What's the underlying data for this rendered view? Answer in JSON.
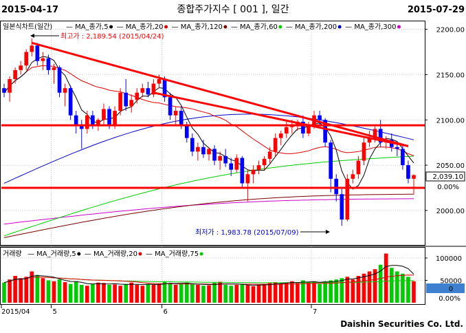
{
  "header": {
    "start_date": "2015-04-17",
    "title": "종합주가지수 [ 001 ], 일간",
    "end_date": "2015-07-29"
  },
  "footer": {
    "brand": "Daishin Securities Co. Ltd."
  },
  "colors": {
    "up": "#ff0000",
    "down": "#0000ff",
    "ma5": "#000000",
    "ma20": "#e00000",
    "ma120": "#7a0000",
    "ma60": "#00cc00",
    "ma200": "#0000cc",
    "ma300": "#cc00cc",
    "trendline": "#ff0000",
    "volume_up": "#ff0000",
    "volume_down": "#00cc00",
    "volume_ma": "#000000",
    "price_box": "#ffffff",
    "volume_box": "#3f7fd0"
  },
  "chart_data": [
    {
      "type": "candlestick",
      "legend_title": "일본식차트(일간)",
      "legend": [
        {
          "label": "MA_종가,5",
          "color": "#000000"
        },
        {
          "label": "MA_종가,20",
          "color": "#e00000"
        },
        {
          "label": "MA_종가,120",
          "color": "#7a0000"
        },
        {
          "label": "MA_종가,60",
          "color": "#00cc00"
        },
        {
          "label": "MA_종가,200",
          "color": "#0000cc"
        },
        {
          "label": "MA_종가,300",
          "color": "#cc00cc"
        }
      ],
      "ylim": [
        1965,
        2205
      ],
      "yticks": [
        2000,
        2050,
        2100,
        2150,
        2200
      ],
      "ytick_labels": [
        "2000.00",
        "2050.00",
        "2100.00",
        "2150.00",
        "2200.00"
      ],
      "last_value": "2,039.10",
      "last_change": "0.00%",
      "annotations": {
        "high": "최고가 : 2,189.54 (2015/04/24)",
        "low": "최저가 : 1,983.78 (2015/07/09)"
      },
      "horizontal_levels": [
        2094,
        2025
      ],
      "trendlines": [
        {
          "from": {
            "i": 5,
            "y": 2185
          },
          "to": {
            "i": 73,
            "y": 2071
          }
        },
        {
          "from": {
            "i": 27,
            "y": 2130
          },
          "to": {
            "i": 73,
            "y": 2071
          }
        }
      ],
      "candles": [
        [
          2135,
          2140,
          2125,
          2130
        ],
        [
          2130,
          2148,
          2120,
          2145
        ],
        [
          2145,
          2158,
          2140,
          2155
        ],
        [
          2155,
          2165,
          2150,
          2160
        ],
        [
          2160,
          2178,
          2155,
          2175
        ],
        [
          2175,
          2190,
          2170,
          2182
        ],
        [
          2182,
          2185,
          2160,
          2165
        ],
        [
          2165,
          2175,
          2155,
          2168
        ],
        [
          2168,
          2172,
          2150,
          2155
        ],
        [
          2155,
          2162,
          2140,
          2158
        ],
        [
          2158,
          2160,
          2125,
          2130
        ],
        [
          2130,
          2140,
          2115,
          2135
        ],
        [
          2135,
          2138,
          2100,
          2105
        ],
        [
          2105,
          2110,
          2085,
          2095
        ],
        [
          2095,
          2100,
          2068,
          2090
        ],
        [
          2090,
          2110,
          2085,
          2105
        ],
        [
          2105,
          2110,
          2090,
          2095
        ],
        [
          2095,
          2102,
          2088,
          2100
        ],
        [
          2100,
          2118,
          2095,
          2112
        ],
        [
          2112,
          2115,
          2090,
          2095
        ],
        [
          2095,
          2115,
          2090,
          2110
        ],
        [
          2110,
          2135,
          2105,
          2130
        ],
        [
          2130,
          2145,
          2110,
          2115
        ],
        [
          2115,
          2128,
          2108,
          2122
        ],
        [
          2122,
          2135,
          2118,
          2130
        ],
        [
          2130,
          2140,
          2125,
          2135
        ],
        [
          2135,
          2142,
          2125,
          2128
        ],
        [
          2128,
          2145,
          2125,
          2140
        ],
        [
          2140,
          2150,
          2135,
          2145
        ],
        [
          2145,
          2148,
          2120,
          2125
        ],
        [
          2125,
          2130,
          2100,
          2105
        ],
        [
          2105,
          2115,
          2095,
          2110
        ],
        [
          2110,
          2115,
          2090,
          2095
        ],
        [
          2095,
          2098,
          2075,
          2080
        ],
        [
          2080,
          2085,
          2060,
          2065
        ],
        [
          2065,
          2075,
          2055,
          2070
        ],
        [
          2070,
          2078,
          2058,
          2062
        ],
        [
          2062,
          2070,
          2055,
          2068
        ],
        [
          2068,
          2072,
          2050,
          2055
        ],
        [
          2055,
          2065,
          2045,
          2060
        ],
        [
          2060,
          2068,
          2048,
          2052
        ],
        [
          2052,
          2058,
          2038,
          2045
        ],
        [
          2045,
          2062,
          2042,
          2058
        ],
        [
          2058,
          2060,
          2025,
          2030
        ],
        [
          2030,
          2045,
          2010,
          2040
        ],
        [
          2040,
          2050,
          2030,
          2045
        ],
        [
          2045,
          2055,
          2040,
          2050
        ],
        [
          2050,
          2060,
          2045,
          2057
        ],
        [
          2057,
          2070,
          2052,
          2065
        ],
        [
          2065,
          2085,
          2060,
          2080
        ],
        [
          2080,
          2088,
          2072,
          2085
        ],
        [
          2085,
          2098,
          2080,
          2092
        ],
        [
          2092,
          2100,
          2085,
          2095
        ],
        [
          2095,
          2100,
          2088,
          2098
        ],
        [
          2098,
          2105,
          2080,
          2085
        ],
        [
          2085,
          2098,
          2082,
          2095
        ],
        [
          2095,
          2110,
          2090,
          2105
        ],
        [
          2105,
          2110,
          2095,
          2100
        ],
        [
          2100,
          2102,
          2070,
          2075
        ],
        [
          2075,
          2078,
          2020,
          2035
        ],
        [
          2035,
          2040,
          2010,
          2018
        ],
        [
          2018,
          2025,
          1983,
          1990
        ],
        [
          1990,
          2040,
          1988,
          2035
        ],
        [
          2035,
          2045,
          2030,
          2040
        ],
        [
          2040,
          2060,
          2035,
          2055
        ],
        [
          2055,
          2080,
          2050,
          2075
        ],
        [
          2075,
          2088,
          2070,
          2080
        ],
        [
          2080,
          2095,
          2075,
          2090
        ],
        [
          2090,
          2100,
          2070,
          2075
        ],
        [
          2075,
          2082,
          2068,
          2078
        ],
        [
          2078,
          2085,
          2065,
          2070
        ],
        [
          2070,
          2075,
          2060,
          2068
        ],
        [
          2068,
          2072,
          2045,
          2050
        ],
        [
          2050,
          2055,
          2030,
          2035
        ],
        [
          2035,
          2040,
          2018,
          2039
        ]
      ]
    },
    {
      "type": "bar",
      "legend_title": "거래량",
      "legend": [
        {
          "label": "MA_거래량,5",
          "color": "#000000"
        },
        {
          "label": "MA_거래량,20",
          "color": "#e00000"
        },
        {
          "label": "MA_거래량,75",
          "color": "#00cc00"
        }
      ],
      "ylim": [
        0,
        120000
      ],
      "yticks": [
        50000,
        100000
      ],
      "ytick_labels": [
        "50000",
        "100000"
      ],
      "last_value": "0",
      "last_change": "0.00%",
      "volumes": [
        45000,
        52000,
        60000,
        55000,
        58000,
        70000,
        62000,
        55000,
        50000,
        48000,
        52000,
        46000,
        42000,
        48000,
        40000,
        38000,
        42000,
        45000,
        44000,
        40000,
        41000,
        38000,
        42000,
        45000,
        40000,
        38000,
        42000,
        40000,
        43000,
        48000,
        44000,
        40000,
        42000,
        45000,
        41000,
        40000,
        38000,
        39000,
        45000,
        47000,
        40000,
        38000,
        40000,
        42000,
        39000,
        37000,
        40000,
        42000,
        44000,
        46000,
        43000,
        45000,
        48000,
        44000,
        50000,
        46000,
        47000,
        42000,
        48000,
        50000,
        52000,
        55000,
        58000,
        52000,
        60000,
        65000,
        70000,
        75000,
        85000,
        110000,
        78000,
        70000,
        65000,
        58000,
        48000
      ]
    }
  ],
  "x_axis": {
    "labels": [
      {
        "i": 0,
        "text": "2015/04"
      },
      {
        "i": 9,
        "text": "5"
      },
      {
        "i": 29,
        "text": "6"
      },
      {
        "i": 56,
        "text": "7"
      }
    ]
  }
}
